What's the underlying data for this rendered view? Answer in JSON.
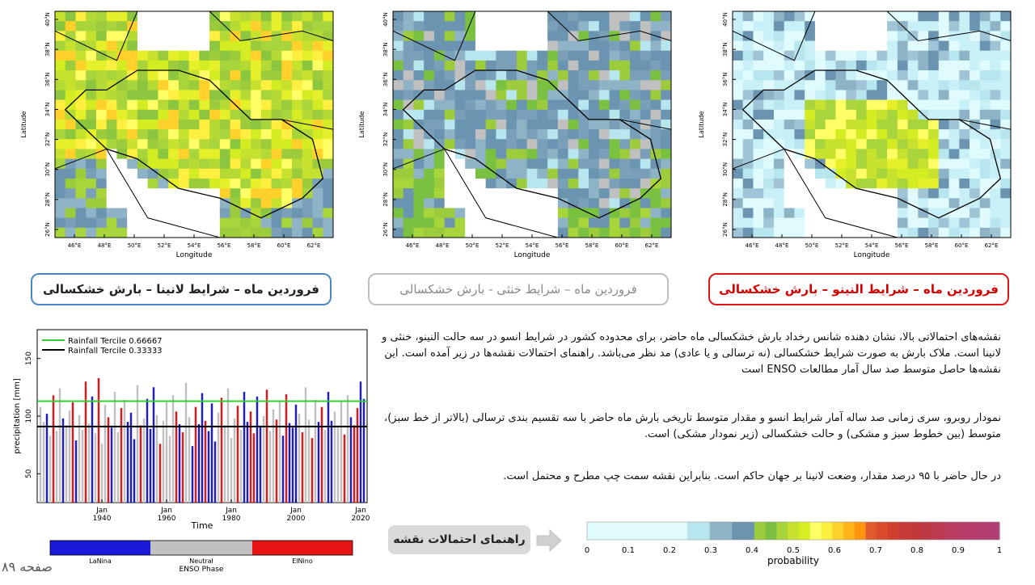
{
  "maps": {
    "lat_label": "Latitude",
    "lon_label": "Longitude",
    "lat_ticks": [
      "40°N",
      "38°N",
      "36°N",
      "34°N",
      "32°N",
      "30°N",
      "28°N",
      "26°N"
    ],
    "lon_ticks": [
      "46°E",
      "48°E",
      "50°E",
      "52°E",
      "54°E",
      "56°E",
      "58°E",
      "60°E",
      "62°E"
    ],
    "panels": [
      {
        "id": "lanina",
        "dominant": "high",
        "caption": "فروردین ماه – شرایط لانینا – بارش خشکسالی"
      },
      {
        "id": "neutral",
        "dominant": "low",
        "caption": "فروردین ماه – شرایط خنثی - بارش خشکسالی"
      },
      {
        "id": "elnino",
        "dominant": "vlow",
        "caption": "فروردین ماه – شرایط النینو – بارش خشکسالی"
      }
    ]
  },
  "paragraphs": {
    "p1": "نقشه‌های احتمالاتی بالا، نشان دهنده شانس رخداد بارش خشکسالی ماه حاضر، برای محدوده کشور در شرایط انسو در سه حالت النینو، خنثی و لانینا است. ملاک بارش به صورت شرایط خشکسالی (نه ترسالی و یا عادی) مد نظر می‌باشد. راهنمای احتمالات نقشه‌ها در زیر آمده است. این نقشه‌ها حاصل متوسط صد سال آمار مطالعات ENSO است",
    "p2": "نمودار روبرو، سری زمانی صد ساله آمار شرایط انسو و مقدار متوسط تاریخی بارش ماه حاضر با سه تقسیم بندی ترسالی (بالاتر از خط سبز)، متوسط (بین خطوط سبز و مشکی) و حالت خشکسالی (زیر نمودار مشکی) است.",
    "p3": "در حال حاضر با ۹۵ درصد مقدار، وضعت لانینا بر جهان حاکم است. بنابراین نقشه سمت چپ مطرح و محتمل است."
  },
  "legend_button": "راهنمای احتمالات نقشه",
  "page_number": "صفحه ۸۹",
  "colors": {
    "lanina": "#1a1adb",
    "neutral": "#c0c0c0",
    "elnino": "#e61414",
    "upper_tercile": "#33cc33",
    "lower_tercile": "#000000"
  },
  "chart_data": {
    "type": "bar",
    "ylabel": "precipitation [mm]",
    "xlabel": "Time",
    "x_ticks": [
      "Jan 1940",
      "Jan 1960",
      "Jan 1980",
      "Jan 2000",
      "Jan 2020"
    ],
    "y_ticks": [
      50,
      100,
      150
    ],
    "ylim": [
      25,
      175
    ],
    "xlim": [
      1920,
      2022
    ],
    "legend": {
      "upper": "Rainfall Tercile 0.66667",
      "lower": "Rainfall Tercile 0.33333"
    },
    "upper_tercile": 113,
    "lower_tercile": 91,
    "enso_bar": {
      "labels": [
        "LaNina",
        "Neutral",
        "ElNino"
      ],
      "title": "ENSO Phase"
    },
    "years": [
      1921,
      1922,
      1923,
      1924,
      1925,
      1926,
      1927,
      1928,
      1929,
      1930,
      1931,
      1932,
      1933,
      1934,
      1935,
      1936,
      1937,
      1938,
      1939,
      1940,
      1941,
      1942,
      1943,
      1944,
      1945,
      1946,
      1947,
      1948,
      1949,
      1950,
      1951,
      1952,
      1953,
      1954,
      1955,
      1956,
      1957,
      1958,
      1959,
      1960,
      1961,
      1962,
      1963,
      1964,
      1965,
      1966,
      1967,
      1968,
      1969,
      1970,
      1971,
      1972,
      1973,
      1974,
      1975,
      1976,
      1977,
      1978,
      1979,
      1980,
      1981,
      1982,
      1983,
      1984,
      1985,
      1986,
      1987,
      1988,
      1989,
      1990,
      1991,
      1992,
      1993,
      1994,
      1995,
      1996,
      1997,
      1998,
      1999,
      2000,
      2001,
      2002,
      2003,
      2004,
      2005,
      2006,
      2007,
      2008,
      2009,
      2010,
      2011,
      2012,
      2013,
      2014,
      2015,
      2016,
      2017,
      2018,
      2019,
      2020,
      2021
    ],
    "values": [
      108,
      95,
      102,
      83,
      118,
      87,
      124,
      98,
      92,
      105,
      112,
      79,
      101,
      88,
      130,
      94,
      117,
      85,
      133,
      76,
      110,
      99,
      90,
      121,
      86,
      107,
      114,
      95,
      103,
      80,
      127,
      92,
      98,
      115,
      89,
      125,
      101,
      76,
      96,
      112,
      83,
      118,
      104,
      93,
      86,
      129,
      99,
      74,
      108,
      93,
      120,
      96,
      87,
      111,
      78,
      103,
      116,
      92,
      124,
      81,
      98,
      109,
      88,
      121,
      95,
      104,
      85,
      117,
      91,
      100,
      123,
      87,
      106,
      97,
      113,
      83,
      119,
      94,
      90,
      110,
      102,
      86,
      125,
      97,
      81,
      114,
      95,
      108,
      88,
      121,
      96,
      104,
      90,
      113,
      84,
      118,
      99,
      92,
      107,
      130,
      115
    ],
    "phases": [
      "N",
      "N",
      "L",
      "N",
      "E",
      "N",
      "N",
      "L",
      "N",
      "N",
      "E",
      "L",
      "N",
      "N",
      "E",
      "N",
      "L",
      "N",
      "E",
      "N",
      "N",
      "E",
      "L",
      "N",
      "N",
      "E",
      "N",
      "L",
      "L",
      "L",
      "N",
      "E",
      "N",
      "L",
      "L",
      "L",
      "N",
      "E",
      "N",
      "N",
      "N",
      "N",
      "E",
      "L",
      "E",
      "N",
      "N",
      "L",
      "E",
      "L",
      "L",
      "E",
      "L",
      "L",
      "L",
      "N",
      "E",
      "N",
      "N",
      "N",
      "N",
      "E",
      "N",
      "L",
      "L",
      "E",
      "E",
      "L",
      "L",
      "N",
      "E",
      "N",
      "N",
      "E",
      "N",
      "L",
      "E",
      "L",
      "L",
      "L",
      "N",
      "E",
      "N",
      "N",
      "E",
      "N",
      "L",
      "E",
      "N",
      "L",
      "L",
      "N",
      "N",
      "N",
      "E",
      "N",
      "L",
      "E",
      "E",
      "L",
      "L"
    ]
  }
}
